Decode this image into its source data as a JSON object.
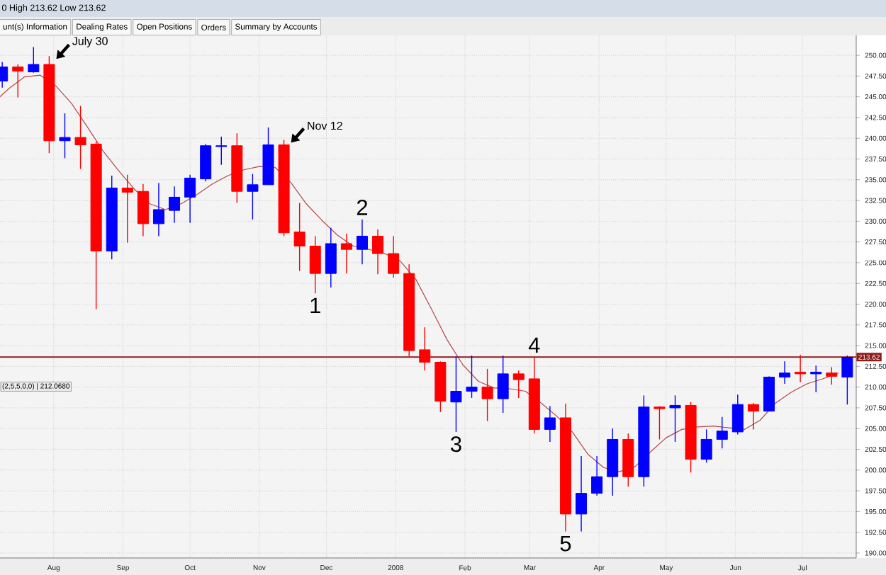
{
  "chart_data": {
    "type": "candlestick",
    "annotations": [
      "0 High 213.62 Low 213.62",
      "unt(s) Information",
      "Dealing Rates",
      "Open Positions",
      "Orders",
      "Summary by Accounts",
      "(2,5,5,0,0) | 212.0680",
      {
        "text": "July 30",
        "x": "2007-07-30",
        "y": 249.9
      },
      {
        "text": "Nov 12",
        "x": "2007-11-12",
        "y": 239.8
      },
      {
        "text": "1",
        "x": "2007-11-26",
        "y": 221.3
      },
      {
        "text": "2",
        "x": "2007-12-17",
        "y": 230.2
      },
      {
        "text": "3",
        "x": "2008-01-28",
        "y": 204.6
      },
      {
        "text": "4",
        "x": "2008-03-03",
        "y": 213.6
      },
      {
        "text": "5",
        "x": "2008-03-17",
        "y": 192.6
      }
    ],
    "x": [
      "2007-07-09",
      "2007-07-16",
      "2007-07-23",
      "2007-07-30",
      "2007-08-06",
      "2007-08-13",
      "2007-08-20",
      "2007-08-27",
      "2007-09-03",
      "2007-09-10",
      "2007-09-17",
      "2007-09-24",
      "2007-10-01",
      "2007-10-08",
      "2007-10-15",
      "2007-10-22",
      "2007-10-29",
      "2007-11-05",
      "2007-11-12",
      "2007-11-19",
      "2007-11-26",
      "2007-12-03",
      "2007-12-10",
      "2007-12-17",
      "2007-12-24",
      "2007-12-31",
      "2008-01-07",
      "2008-01-14",
      "2008-01-21",
      "2008-01-28",
      "2008-02-04",
      "2008-02-11",
      "2008-02-18",
      "2008-02-25",
      "2008-03-03",
      "2008-03-10",
      "2008-03-17",
      "2008-03-24",
      "2008-03-31",
      "2008-04-07",
      "2008-04-14",
      "2008-04-21",
      "2008-04-28",
      "2008-05-05",
      "2008-05-12",
      "2008-05-19",
      "2008-05-26",
      "2008-06-02",
      "2008-06-09",
      "2008-06-16",
      "2008-06-23",
      "2008-06-30",
      "2008-07-07",
      "2008-07-14",
      "2008-07-21"
    ],
    "ohlc": [
      [
        246.9,
        249.2,
        246.1,
        248.6
      ],
      [
        248.6,
        248.9,
        244.9,
        248.1
      ],
      [
        248.0,
        251.0,
        247.9,
        248.9
      ],
      [
        248.9,
        249.9,
        238.2,
        239.7
      ],
      [
        239.7,
        243.0,
        237.6,
        240.1
      ],
      [
        240.1,
        243.9,
        236.3,
        239.2
      ],
      [
        239.3,
        239.6,
        219.4,
        226.4
      ],
      [
        226.4,
        235.5,
        225.4,
        234.0
      ],
      [
        234.0,
        235.6,
        227.4,
        233.5
      ],
      [
        233.6,
        234.5,
        228.2,
        229.7
      ],
      [
        229.7,
        234.6,
        228.2,
        231.4
      ],
      [
        231.3,
        234.2,
        229.8,
        232.9
      ],
      [
        232.9,
        235.6,
        229.8,
        235.2
      ],
      [
        235.1,
        239.3,
        234.8,
        239.1
      ],
      [
        239.0,
        240.2,
        236.8,
        239.1
      ],
      [
        239.1,
        240.6,
        232.2,
        233.6
      ],
      [
        233.6,
        235.7,
        230.2,
        234.4
      ],
      [
        234.4,
        241.3,
        234.4,
        239.2
      ],
      [
        239.2,
        239.8,
        228.2,
        228.6
      ],
      [
        228.7,
        232.2,
        224.0,
        227.0
      ],
      [
        227.0,
        228.2,
        221.3,
        223.7
      ],
      [
        223.7,
        229.2,
        222.0,
        227.3
      ],
      [
        227.3,
        228.5,
        223.7,
        226.6
      ],
      [
        226.6,
        230.2,
        224.8,
        228.2
      ],
      [
        228.2,
        229.0,
        223.6,
        226.1
      ],
      [
        226.1,
        228.2,
        223.2,
        223.7
      ],
      [
        223.7,
        224.8,
        213.7,
        214.4
      ],
      [
        214.5,
        217.2,
        212.0,
        213.0
      ],
      [
        213.0,
        213.1,
        207.0,
        208.3
      ],
      [
        208.2,
        213.7,
        204.6,
        209.5
      ],
      [
        209.5,
        213.8,
        208.7,
        210.0
      ],
      [
        210.0,
        212.2,
        205.9,
        208.6
      ],
      [
        208.6,
        213.8,
        206.9,
        211.6
      ],
      [
        211.6,
        212.0,
        208.7,
        210.9
      ],
      [
        211.0,
        213.6,
        204.4,
        204.9
      ],
      [
        204.9,
        207.7,
        203.4,
        206.3
      ],
      [
        206.3,
        208.0,
        192.6,
        194.7
      ],
      [
        194.7,
        201.7,
        192.6,
        197.2
      ],
      [
        197.2,
        201.7,
        196.9,
        199.2
      ],
      [
        199.2,
        205.0,
        196.9,
        203.7
      ],
      [
        203.7,
        204.4,
        198.0,
        199.2
      ],
      [
        199.2,
        209.0,
        198.0,
        207.6
      ],
      [
        207.6,
        207.7,
        203.7,
        207.4
      ],
      [
        207.5,
        209.0,
        203.4,
        207.8
      ],
      [
        207.8,
        208.2,
        199.7,
        201.3
      ],
      [
        201.3,
        204.9,
        200.9,
        203.7
      ],
      [
        203.7,
        206.4,
        202.6,
        204.7
      ],
      [
        204.6,
        209.1,
        204.3,
        207.9
      ],
      [
        207.9,
        208.1,
        204.9,
        207.1
      ],
      [
        207.1,
        211.3,
        207.1,
        211.2
      ],
      [
        211.2,
        213.1,
        210.4,
        211.7
      ],
      [
        211.8,
        213.9,
        210.6,
        211.6
      ],
      [
        211.6,
        212.6,
        209.4,
        211.8
      ],
      [
        211.7,
        212.4,
        210.3,
        211.3
      ],
      [
        211.2,
        213.8,
        207.9,
        213.6
      ]
    ],
    "colors": [
      "#0000ff",
      "#ff0000",
      "#0000ff",
      "#ff0000",
      "#0000ff",
      "#ff0000",
      "#ff0000",
      "#0000ff",
      "#ff0000",
      "#ff0000",
      "#0000ff",
      "#0000ff",
      "#0000ff",
      "#0000ff",
      "#0000ff",
      "#ff0000",
      "#0000ff",
      "#0000ff",
      "#ff0000",
      "#ff0000",
      "#ff0000",
      "#0000ff",
      "#ff0000",
      "#0000ff",
      "#ff0000",
      "#ff0000",
      "#ff0000",
      "#ff0000",
      "#ff0000",
      "#0000ff",
      "#0000ff",
      "#ff0000",
      "#0000ff",
      "#ff0000",
      "#ff0000",
      "#0000ff",
      "#ff0000",
      "#0000ff",
      "#0000ff",
      "#0000ff",
      "#ff0000",
      "#0000ff",
      "#ff0000",
      "#0000ff",
      "#ff0000",
      "#0000ff",
      "#0000ff",
      "#0000ff",
      "#ff0000",
      "#0000ff",
      "#0000ff",
      "#ff0000",
      "#0000ff",
      "#ff0000",
      "#0000ff"
    ],
    "series": [
      {
        "type": "line",
        "color": "#b5484a",
        "x": [
          "2007-07-08",
          "2007-07-12",
          "2007-07-19",
          "2007-07-26",
          "2007-08-02",
          "2007-08-09",
          "2007-08-16",
          "2007-08-23",
          "2007-08-30",
          "2007-09-06",
          "2007-09-13",
          "2007-09-20",
          "2007-09-27",
          "2007-10-04",
          "2007-10-11",
          "2007-10-18",
          "2007-10-25",
          "2007-11-01",
          "2007-11-08",
          "2007-11-15",
          "2007-11-22",
          "2007-11-29",
          "2007-12-06",
          "2007-12-13",
          "2007-12-20",
          "2007-12-27",
          "2008-01-03",
          "2008-01-10",
          "2008-01-17",
          "2008-01-24",
          "2008-01-31",
          "2008-02-07",
          "2008-02-14",
          "2008-02-21",
          "2008-02-28",
          "2008-03-06",
          "2008-03-13",
          "2008-03-20",
          "2008-03-27",
          "2008-04-03",
          "2008-04-10",
          "2008-04-17",
          "2008-04-24",
          "2008-05-01",
          "2008-05-08",
          "2008-05-15",
          "2008-05-22",
          "2008-05-29",
          "2008-06-05",
          "2008-06-12",
          "2008-06-19",
          "2008-06-26",
          "2008-07-03",
          "2008-07-10",
          "2008-07-17"
        ],
        "values": [
          245.0,
          246.0,
          247.4,
          247.6,
          246.3,
          244.2,
          241.4,
          238.5,
          236.1,
          233.9,
          232.1,
          231.4,
          232.1,
          233.2,
          234.5,
          235.5,
          236.2,
          236.6,
          236.5,
          234.7,
          232.1,
          230.1,
          228.3,
          227.0,
          226.6,
          226.1,
          225.2,
          223.0,
          219.4,
          215.7,
          212.7,
          210.7,
          209.9,
          209.8,
          209.5,
          208.1,
          206.5,
          204.6,
          201.9,
          200.3,
          199.8,
          200.4,
          202.2,
          203.9,
          204.9,
          205.2,
          205.3,
          205.1,
          204.9,
          206.0,
          208.1,
          209.4,
          210.4,
          211.0,
          211.7
        ]
      }
    ],
    "xlim": [
      "2007-07-08",
      "2008-07-25"
    ],
    "ylim": [
      189.4,
      252.4
    ],
    "xticks": [
      {
        "value": "2007-08-01",
        "label": "Aug"
      },
      {
        "value": "2007-09-01",
        "label": "Sep"
      },
      {
        "value": "2007-10-01",
        "label": "Oct"
      },
      {
        "value": "2007-11-01",
        "label": "Nov"
      },
      {
        "value": "2007-12-01",
        "label": "Dec"
      },
      {
        "value": "2008-01-01",
        "label": "2008"
      },
      {
        "value": "2008-02-01",
        "label": "Feb"
      },
      {
        "value": "2008-03-01",
        "label": "Mar"
      },
      {
        "value": "2008-04-01",
        "label": "Apr"
      },
      {
        "value": "2008-05-01",
        "label": "May"
      },
      {
        "value": "2008-06-01",
        "label": "Jun"
      },
      {
        "value": "2008-07-01",
        "label": "Jul"
      }
    ],
    "yticks": [
      {
        "value": 190,
        "label": "190.00"
      },
      {
        "value": 192.5,
        "label": "192.50"
      },
      {
        "value": 195,
        "label": "195.00"
      },
      {
        "value": 197.5,
        "label": "197.50"
      },
      {
        "value": 200,
        "label": "200.00"
      },
      {
        "value": 202.5,
        "label": "202.50"
      },
      {
        "value": 205,
        "label": "205.00"
      },
      {
        "value": 207.5,
        "label": "207.50"
      },
      {
        "value": 210,
        "label": "210.00"
      },
      {
        "value": 212.5,
        "label": "212.50"
      },
      {
        "value": 215,
        "label": "215.00"
      },
      {
        "value": 217.5,
        "label": "217.50"
      },
      {
        "value": 220,
        "label": "220.00"
      },
      {
        "value": 222.5,
        "label": "222.50"
      },
      {
        "value": 225,
        "label": "225.00"
      },
      {
        "value": 227.5,
        "label": "227.50"
      },
      {
        "value": 230,
        "label": "230.00"
      },
      {
        "value": 232.5,
        "label": "232.50"
      },
      {
        "value": 235,
        "label": "235.00"
      },
      {
        "value": 237.5,
        "label": "237.50"
      },
      {
        "value": 240,
        "label": "240.00"
      },
      {
        "value": 242.5,
        "label": "242.50"
      },
      {
        "value": 245,
        "label": "245.00"
      },
      {
        "value": 247.5,
        "label": "247.50"
      },
      {
        "value": 250,
        "label": "250.00"
      }
    ],
    "grid": true,
    "ref_lines": [
      {
        "axis": "y",
        "value": 213.62,
        "label": "213.62",
        "color": "#8b1a1a"
      }
    ]
  }
}
